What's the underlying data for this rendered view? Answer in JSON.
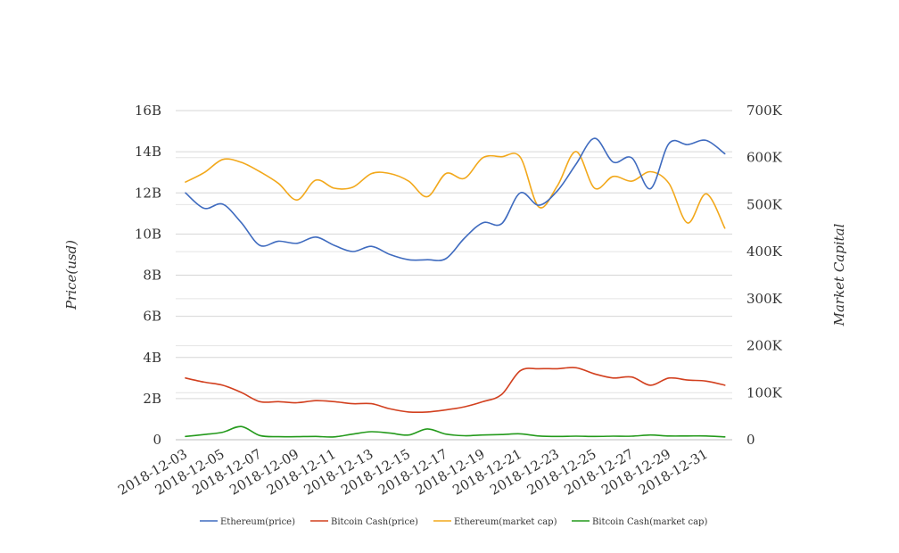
{
  "chart_data": {
    "type": "line",
    "title": "",
    "ylabel_left": "Price(usd)",
    "ylabel_right": "Market Capital",
    "grid": true,
    "legend_position": "bottom",
    "x": [
      "2018-12-03",
      "2018-12-04",
      "2018-12-05",
      "2018-12-06",
      "2018-12-07",
      "2018-12-08",
      "2018-12-09",
      "2018-12-10",
      "2018-12-11",
      "2018-12-12",
      "2018-12-13",
      "2018-12-14",
      "2018-12-15",
      "2018-12-16",
      "2018-12-17",
      "2018-12-18",
      "2018-12-19",
      "2018-12-20",
      "2018-12-21",
      "2018-12-22",
      "2018-12-23",
      "2018-12-24",
      "2018-12-25",
      "2018-12-26",
      "2018-12-27",
      "2018-12-28",
      "2018-12-29",
      "2018-12-30",
      "2018-12-31",
      "2019-01-01"
    ],
    "x_tick_labels": [
      "2018-12-03",
      "2018-12-05",
      "2018-12-07",
      "2018-12-09",
      "2018-12-11",
      "2018-12-13",
      "2018-12-15",
      "2018-12-17",
      "2018-12-19",
      "2018-12-21",
      "2018-12-23",
      "2018-12-25",
      "2018-12-27",
      "2018-12-29",
      "2018-12-31"
    ],
    "y_left": {
      "range": [
        0,
        16000000000
      ],
      "tick_labels": [
        "0",
        "2B",
        "4B",
        "6B",
        "8B",
        "10B",
        "12B",
        "14B",
        "16B"
      ]
    },
    "y_right": {
      "range": [
        0,
        700000
      ],
      "tick_labels": [
        "0",
        "100K",
        "200K",
        "300K",
        "400K",
        "500K",
        "600K",
        "700K"
      ]
    },
    "series": [
      {
        "name": "Ethereum(price)",
        "axis": "left",
        "color": "#3f6bbf",
        "values": [
          12000000000,
          11250000000,
          11450000000,
          10550000000,
          9450000000,
          9650000000,
          9550000000,
          9850000000,
          9450000000,
          9150000000,
          9400000000,
          9000000000,
          8750000000,
          8750000000,
          8800000000,
          9800000000,
          10550000000,
          10500000000,
          12000000000,
          11400000000,
          12100000000,
          13400000000,
          14650000000,
          13500000000,
          13700000000,
          12200000000,
          14400000000,
          14350000000,
          14550000000,
          13900000000
        ]
      },
      {
        "name": "Bitcoin Cash(price)",
        "axis": "left",
        "color": "#d2401f",
        "values": [
          3000000000,
          2800000000,
          2650000000,
          2300000000,
          1850000000,
          1850000000,
          1800000000,
          1900000000,
          1850000000,
          1750000000,
          1750000000,
          1500000000,
          1350000000,
          1350000000,
          1450000000,
          1600000000,
          1850000000,
          2200000000,
          3350000000,
          3450000000,
          3450000000,
          3500000000,
          3200000000,
          3000000000,
          3050000000,
          2650000000,
          3000000000,
          2900000000,
          2850000000,
          2650000000
        ]
      },
      {
        "name": "Ethereum(market cap)",
        "axis": "right",
        "color": "#f2a81b",
        "values": [
          548000,
          568000,
          596000,
          590000,
          570000,
          545000,
          510000,
          552000,
          535000,
          537000,
          566000,
          566000,
          550000,
          517000,
          566000,
          556000,
          600000,
          602000,
          601000,
          495000,
          540000,
          613000,
          535000,
          560000,
          550000,
          570000,
          545000,
          461000,
          523000,
          450000
        ]
      },
      {
        "name": "Bitcoin Cash(market cap)",
        "axis": "right",
        "color": "#249a1c",
        "values": [
          7000,
          11000,
          16000,
          28000,
          9000,
          6500,
          6500,
          7000,
          6000,
          12000,
          17000,
          14000,
          10000,
          23000,
          12000,
          8500,
          10000,
          11000,
          12500,
          8000,
          7000,
          7500,
          7000,
          7500,
          7500,
          10000,
          8000,
          8000,
          8000,
          6000
        ]
      }
    ]
  }
}
